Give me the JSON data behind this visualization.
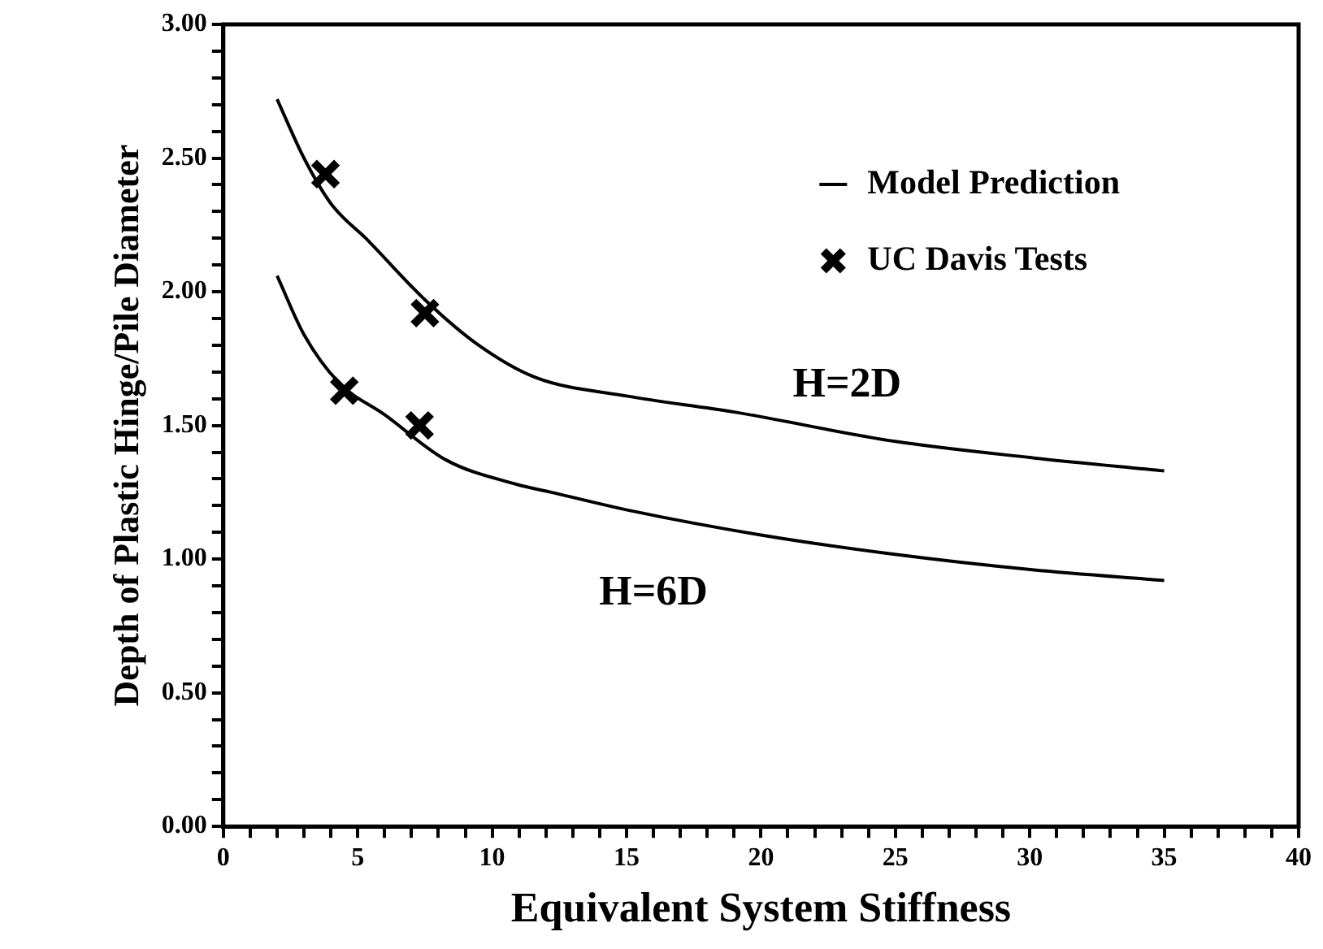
{
  "chart_data": {
    "type": "line",
    "xlabel": "Equivalent System Stiffness",
    "ylabel": "Depth of Plastic Hinge/Pile Diameter",
    "xlim": [
      0,
      40
    ],
    "xticks": [
      0,
      {
        "value": 1,
        "label": null
      },
      {
        "value": 2,
        "label": null
      },
      {
        "value": 3,
        "label": null
      },
      {
        "value": 4,
        "label": null
      },
      5,
      {
        "value": 6,
        "label": null
      },
      {
        "value": 7,
        "label": null
      },
      {
        "value": 8,
        "label": null
      },
      {
        "value": 9,
        "label": null
      },
      10,
      {
        "value": 11,
        "label": null
      },
      {
        "value": 12,
        "label": null
      },
      {
        "value": 13,
        "label": null
      },
      {
        "value": 14,
        "label": null
      },
      15,
      {
        "value": 16,
        "label": null
      },
      {
        "value": 17,
        "label": null
      },
      {
        "value": 18,
        "label": null
      },
      {
        "value": 19,
        "label": null
      },
      20,
      {
        "value": 21,
        "label": null
      },
      {
        "value": 22,
        "label": null
      },
      {
        "value": 23,
        "label": null
      },
      {
        "value": 24,
        "label": null
      },
      25,
      {
        "value": 26,
        "label": null
      },
      {
        "value": 27,
        "label": null
      },
      {
        "value": 28,
        "label": null
      },
      {
        "value": 29,
        "label": null
      },
      30,
      {
        "value": 31,
        "label": null
      },
      {
        "value": 32,
        "label": null
      },
      {
        "value": 33,
        "label": null
      },
      {
        "value": 34,
        "label": null
      },
      35,
      {
        "value": 36,
        "label": null
      },
      {
        "value": 37,
        "label": null
      },
      {
        "value": 38,
        "label": null
      },
      {
        "value": 39,
        "label": null
      },
      40
    ],
    "ylim": [
      0,
      3
    ],
    "yticks": [
      {
        "value": 0,
        "label": "0.00"
      },
      {
        "value": 0.1,
        "label": null
      },
      {
        "value": 0.2,
        "label": null
      },
      {
        "value": 0.3,
        "label": null
      },
      {
        "value": 0.4,
        "label": null
      },
      {
        "value": 0.5,
        "label": "0.50"
      },
      {
        "value": 0.6,
        "label": null
      },
      {
        "value": 0.7,
        "label": null
      },
      {
        "value": 0.8,
        "label": null
      },
      {
        "value": 0.9,
        "label": null
      },
      {
        "value": 1,
        "label": "1.00"
      },
      {
        "value": 1.1,
        "label": null
      },
      {
        "value": 1.2,
        "label": null
      },
      {
        "value": 1.3,
        "label": null
      },
      {
        "value": 1.4,
        "label": null
      },
      {
        "value": 1.5,
        "label": "1.50"
      },
      {
        "value": 1.6,
        "label": null
      },
      {
        "value": 1.7,
        "label": null
      },
      {
        "value": 1.8,
        "label": null
      },
      {
        "value": 1.9,
        "label": null
      },
      {
        "value": 2,
        "label": "2.00"
      },
      {
        "value": 2.1,
        "label": null
      },
      {
        "value": 2.2,
        "label": null
      },
      {
        "value": 2.3,
        "label": null
      },
      {
        "value": 2.4,
        "label": null
      },
      {
        "value": 2.5,
        "label": "2.50"
      },
      {
        "value": 2.6,
        "label": null
      },
      {
        "value": 2.7,
        "label": null
      },
      {
        "value": 2.8,
        "label": null
      },
      {
        "value": 2.9,
        "label": null
      },
      {
        "value": 3,
        "label": "3.00"
      }
    ],
    "legend": "top right",
    "series": [
      {
        "name": "Model Prediction",
        "type": "line",
        "color": "#000000",
        "marker": "none",
        "line_style": "solid",
        "x": [
          2,
          3,
          4,
          5.4,
          7.5,
          9.5,
          11.6,
          15,
          19,
          25,
          30,
          35
        ],
        "values": [
          2.72,
          2.5,
          2.33,
          2.19,
          1.97,
          1.8,
          1.68,
          1.61,
          1.55,
          1.44,
          1.38,
          1.33
        ]
      },
      {
        "type": "line",
        "color": "#000000",
        "marker": "none",
        "line_style": "solid",
        "x": [
          2,
          3,
          4.3,
          6,
          8.3,
          10.9,
          12.2,
          15.2,
          20,
          24.8,
          30.1,
          35
        ],
        "values": [
          2.06,
          1.84,
          1.66,
          1.54,
          1.37,
          1.28,
          1.25,
          1.18,
          1.09,
          1.02,
          0.96,
          0.92
        ]
      },
      {
        "name": "UC Davis Tests",
        "type": "scatter",
        "color": "#000000",
        "marker": "cross",
        "x": [
          3.8,
          7.5,
          4.5,
          7.3
        ],
        "values": [
          2.44,
          1.92,
          1.63,
          1.5
        ]
      }
    ],
    "annotations": [
      "H=2D",
      "H=6D"
    ]
  }
}
